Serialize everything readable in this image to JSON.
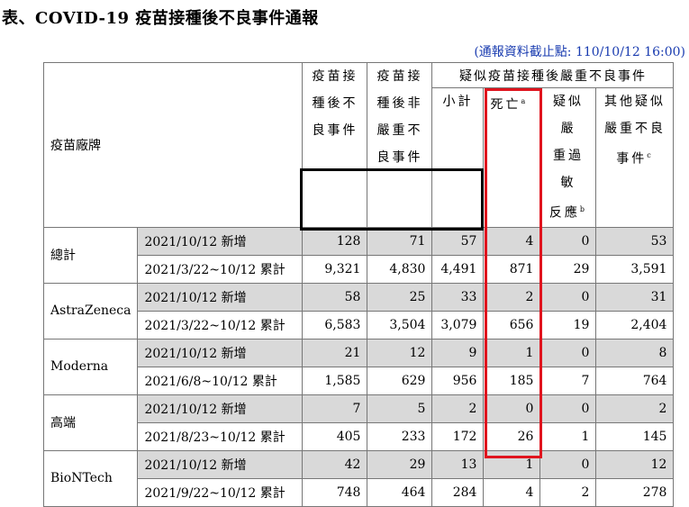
{
  "title": "表、COVID-19 疫苗接種後不良事件通報",
  "cutoff": "(通報資料截止點: 110/10/12 16:00)",
  "headers": {
    "brand": "疫苗廠牌",
    "adverse": [
      "疫苗接",
      "種後不",
      "良事件"
    ],
    "non_serious": [
      "疫苗接",
      "種後非",
      "嚴重不",
      "良事件"
    ],
    "serious_group": "疑似疫苗接種後嚴重不良事件",
    "subtotal": "小計",
    "death": "死亡",
    "death_note": "a",
    "anaphylaxis": [
      "疑似嚴",
      "重過敏",
      "反應"
    ],
    "anaphylaxis_note": "b",
    "other": [
      "其他疑似",
      "嚴重不良",
      "事件"
    ],
    "other_note": "c"
  },
  "groups": [
    {
      "brand": "總計",
      "rows": [
        {
          "period": "2021/10/12 新增",
          "values": [
            "128",
            "71",
            "57",
            "4",
            "0",
            "53"
          ]
        },
        {
          "period": "2021/3/22~10/12 累計",
          "values": [
            "9,321",
            "4,830",
            "4,491",
            "871",
            "29",
            "3,591"
          ]
        }
      ]
    },
    {
      "brand": "AstraZeneca",
      "rows": [
        {
          "period": "2021/10/12 新增",
          "values": [
            "58",
            "25",
            "33",
            "2",
            "0",
            "31"
          ]
        },
        {
          "period": "2021/3/22~10/12 累計",
          "values": [
            "6,583",
            "3,504",
            "3,079",
            "656",
            "19",
            "2,404"
          ]
        }
      ]
    },
    {
      "brand": "Moderna",
      "rows": [
        {
          "period": "2021/10/12 新增",
          "values": [
            "21",
            "12",
            "9",
            "1",
            "0",
            "8"
          ]
        },
        {
          "period": "2021/6/8~10/12 累計",
          "values": [
            "1,585",
            "629",
            "956",
            "185",
            "7",
            "764"
          ]
        }
      ]
    },
    {
      "brand": "高端",
      "rows": [
        {
          "period": "2021/10/12 新增",
          "values": [
            "7",
            "5",
            "2",
            "0",
            "0",
            "2"
          ]
        },
        {
          "period": "2021/8/23~10/12 累計",
          "values": [
            "405",
            "233",
            "172",
            "26",
            "1",
            "145"
          ]
        }
      ]
    },
    {
      "brand": "BioNTech",
      "rows": [
        {
          "period": "2021/10/12 新增",
          "values": [
            "42",
            "29",
            "13",
            "1",
            "0",
            "12"
          ]
        },
        {
          "period": "2021/9/22~10/12 累計",
          "values": [
            "748",
            "464",
            "284",
            "4",
            "2",
            "278"
          ]
        }
      ]
    }
  ],
  "colors": {
    "highlight_red": "#e0141e",
    "shade_gray": "#d9d9d9",
    "cutoff_blue": "#1a3cb0"
  }
}
